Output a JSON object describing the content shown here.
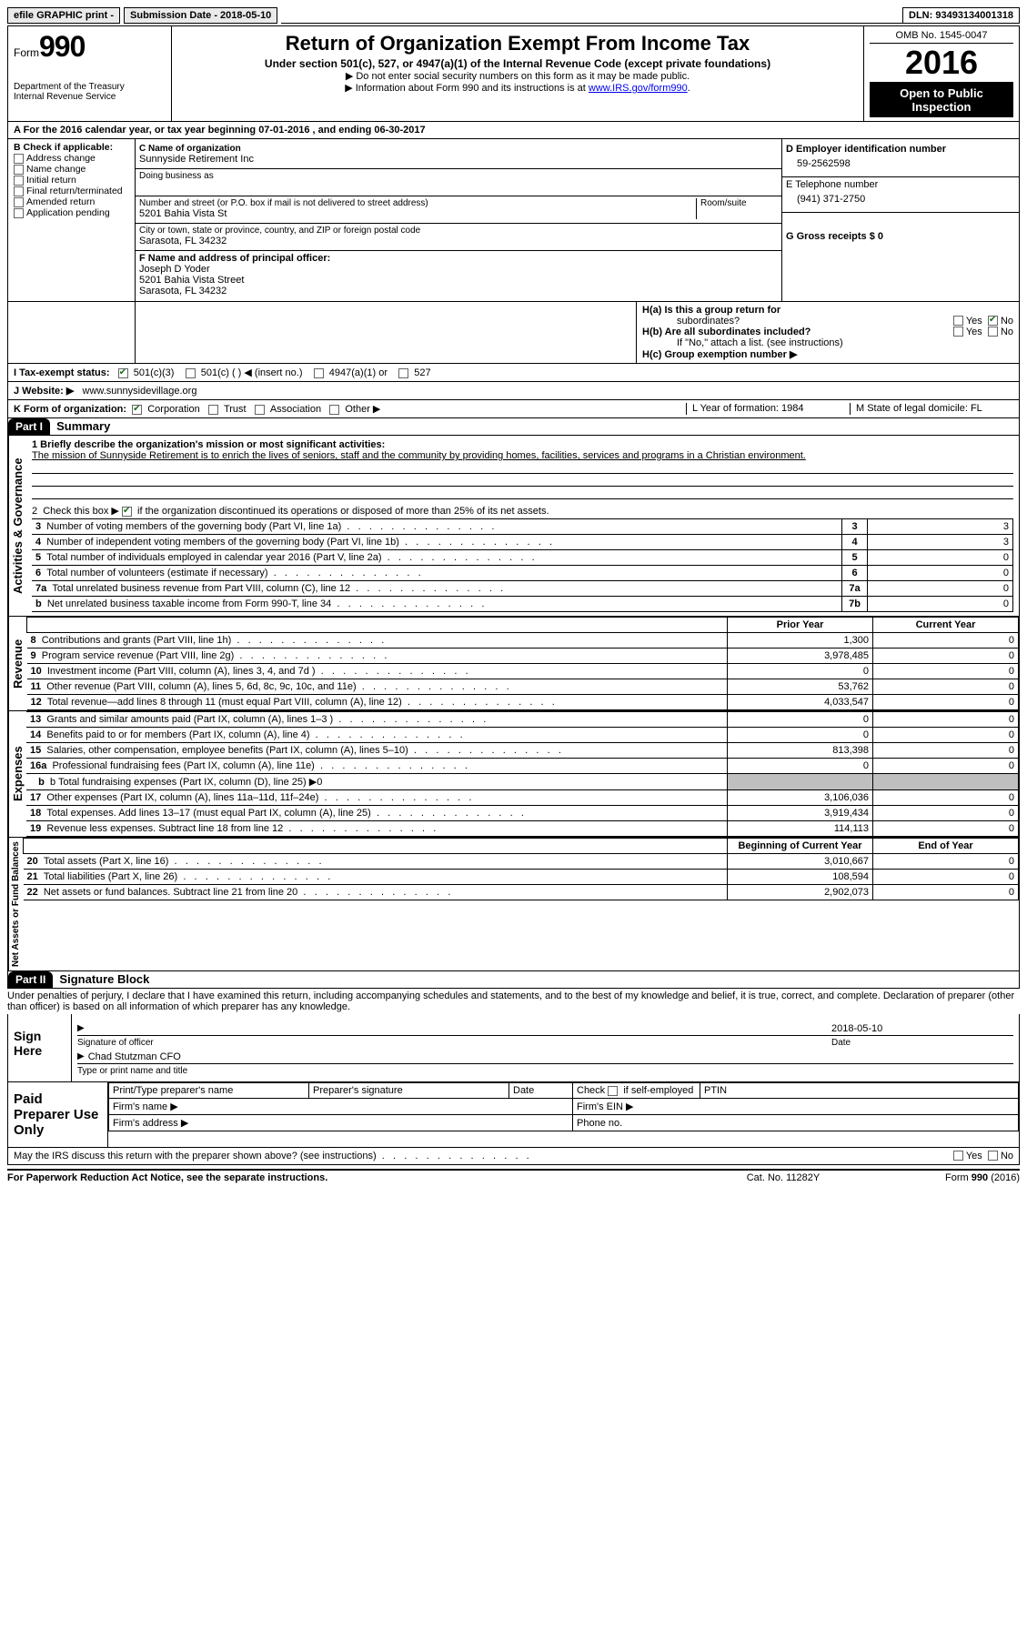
{
  "topbar": {
    "efile": "efile GRAPHIC print -",
    "submission": "Submission Date - 2018-05-10",
    "dln": "DLN: 93493134001318"
  },
  "header": {
    "form_word": "Form",
    "form_num": "990",
    "dept1": "Department of the Treasury",
    "dept2": "Internal Revenue Service",
    "title": "Return of Organization Exempt From Income Tax",
    "subtitle": "Under section 501(c), 527, or 4947(a)(1) of the Internal Revenue Code (except private foundations)",
    "note1": "▶ Do not enter social security numbers on this form as it may be made public.",
    "note2_pre": "▶ Information about Form 990 and its instructions is at ",
    "note2_link": "www.IRS.gov/form990",
    "omb": "OMB No. 1545-0047",
    "year": "2016",
    "open1": "Open to Public",
    "open2": "Inspection"
  },
  "rowA": "A   For the 2016 calendar year, or tax year beginning 07-01-2016   , and ending 06-30-2017",
  "colB": {
    "title": "B Check if applicable:",
    "items": [
      "Address change",
      "Name change",
      "Initial return",
      "Final return/terminated",
      "Amended return",
      "Application pending"
    ]
  },
  "colC": {
    "c_label": "C Name of organization",
    "org_name": "Sunnyside Retirement Inc",
    "dba": "Doing business as",
    "street_label": "Number and street (or P.O. box if mail is not delivered to street address)",
    "room_label": "Room/suite",
    "street": "5201 Bahia Vista St",
    "city_label": "City or town, state or province, country, and ZIP or foreign postal code",
    "city": "Sarasota, FL  34232",
    "f_label": "F  Name and address of principal officer:",
    "f_name": "Joseph D Yoder",
    "f_street": "5201 Bahia Vista Street",
    "f_city": "Sarasota, FL  34232"
  },
  "colD": {
    "d_label": "D Employer identification number",
    "ein": "59-2562598",
    "e_label": "E Telephone number",
    "phone": "(941) 371-2750",
    "g_label": "G Gross receipts $ 0"
  },
  "rowH": {
    "ha": "H(a)  Is this a group return for",
    "ha2": "subordinates?",
    "hb": "H(b)  Are all subordinates included?",
    "hb_note": "If \"No,\" attach a list. (see instructions)",
    "hc": "H(c)  Group exemption number ▶",
    "yes": "Yes",
    "no": "No"
  },
  "rowI": {
    "label": "I   Tax-exempt status:",
    "o1": "501(c)(3)",
    "o2": "501(c) (  ) ◀ (insert no.)",
    "o3": "4947(a)(1) or",
    "o4": "527"
  },
  "rowJ": {
    "label": "J   Website: ▶",
    "url": "www.sunnysidevillage.org"
  },
  "rowK": {
    "label": "K Form of organization:",
    "opts": [
      "Corporation",
      "Trust",
      "Association",
      "Other ▶"
    ],
    "l": "L Year of formation: 1984",
    "m": "M State of legal domicile: FL"
  },
  "part1": {
    "tag": "Part I",
    "title": "Summary",
    "line1_label": "1   Briefly describe the organization's mission or most significant activities:",
    "mission": "The mission of Sunnyside Retirement is to enrich the lives of seniors, staff and the community by providing homes, facilities, services and programs in a Christian environment.",
    "line2": "2   Check this box ▶        if the organization discontinued its operations or disposed of more than 25% of its net assets.",
    "gov_label": "Activities & Governance",
    "rev_label": "Revenue",
    "exp_label": "Expenses",
    "na_label": "Net Assets or Fund Balances",
    "rows_gov": [
      {
        "n": "3",
        "t": "Number of voting members of the governing body (Part VI, line 1a)",
        "k": "3",
        "v": "3"
      },
      {
        "n": "4",
        "t": "Number of independent voting members of the governing body (Part VI, line 1b)",
        "k": "4",
        "v": "3"
      },
      {
        "n": "5",
        "t": "Total number of individuals employed in calendar year 2016 (Part V, line 2a)",
        "k": "5",
        "v": "0"
      },
      {
        "n": "6",
        "t": "Total number of volunteers (estimate if necessary)",
        "k": "6",
        "v": "0"
      },
      {
        "n": "7a",
        "t": "Total unrelated business revenue from Part VIII, column (C), line 12",
        "k": "7a",
        "v": "0"
      },
      {
        "n": "b",
        "t": "Net unrelated business taxable income from Form 990-T, line 34",
        "k": "7b",
        "v": "0"
      }
    ],
    "col_prior": "Prior Year",
    "col_curr": "Current Year",
    "rows_rev": [
      {
        "n": "8",
        "t": "Contributions and grants (Part VIII, line 1h)",
        "p": "1,300",
        "c": "0"
      },
      {
        "n": "9",
        "t": "Program service revenue (Part VIII, line 2g)",
        "p": "3,978,485",
        "c": "0"
      },
      {
        "n": "10",
        "t": "Investment income (Part VIII, column (A), lines 3, 4, and 7d )",
        "p": "0",
        "c": "0"
      },
      {
        "n": "11",
        "t": "Other revenue (Part VIII, column (A), lines 5, 6d, 8c, 9c, 10c, and 11e)",
        "p": "53,762",
        "c": "0"
      },
      {
        "n": "12",
        "t": "Total revenue—add lines 8 through 11 (must equal Part VIII, column (A), line 12)",
        "p": "4,033,547",
        "c": "0"
      }
    ],
    "rows_exp": [
      {
        "n": "13",
        "t": "Grants and similar amounts paid (Part IX, column (A), lines 1–3 )",
        "p": "0",
        "c": "0"
      },
      {
        "n": "14",
        "t": "Benefits paid to or for members (Part IX, column (A), line 4)",
        "p": "0",
        "c": "0"
      },
      {
        "n": "15",
        "t": "Salaries, other compensation, employee benefits (Part IX, column (A), lines 5–10)",
        "p": "813,398",
        "c": "0"
      },
      {
        "n": "16a",
        "t": "Professional fundraising fees (Part IX, column (A), line 11e)",
        "p": "0",
        "c": "0"
      }
    ],
    "row16b": "b   Total fundraising expenses (Part IX, column (D), line 25) ▶0",
    "rows_exp2": [
      {
        "n": "17",
        "t": "Other expenses (Part IX, column (A), lines 11a–11d, 11f–24e)",
        "p": "3,106,036",
        "c": "0"
      },
      {
        "n": "18",
        "t": "Total expenses. Add lines 13–17 (must equal Part IX, column (A), line 25)",
        "p": "3,919,434",
        "c": "0"
      },
      {
        "n": "19",
        "t": "Revenue less expenses. Subtract line 18 from line 12",
        "p": "114,113",
        "c": "0"
      }
    ],
    "col_boy": "Beginning of Current Year",
    "col_eoy": "End of Year",
    "rows_na": [
      {
        "n": "20",
        "t": "Total assets (Part X, line 16)",
        "p": "3,010,667",
        "c": "0"
      },
      {
        "n": "21",
        "t": "Total liabilities (Part X, line 26)",
        "p": "108,594",
        "c": "0"
      },
      {
        "n": "22",
        "t": "Net assets or fund balances. Subtract line 21 from line 20",
        "p": "2,902,073",
        "c": "0"
      }
    ]
  },
  "part2": {
    "tag": "Part II",
    "title": "Signature Block",
    "penalty": "Under penalties of perjury, I declare that I have examined this return, including accompanying schedules and statements, and to the best of my knowledge and belief, it is true, correct, and complete. Declaration of preparer (other than officer) is based on all information of which preparer has any knowledge.",
    "sign_here": "Sign Here",
    "sig_officer": "Signature of officer",
    "sig_date": "Date",
    "sig_date_val": "2018-05-10",
    "officer_name": "Chad Stutzman CFO",
    "name_title_lbl": "Type or print name and title",
    "paid": "Paid Preparer Use Only",
    "p_name": "Print/Type preparer's name",
    "p_sig": "Preparer's signature",
    "p_date": "Date",
    "p_check": "Check        if self-employed",
    "p_ptin": "PTIN",
    "firm_name": "Firm's name    ▶",
    "firm_ein": "Firm's EIN ▶",
    "firm_addr": "Firm's address ▶",
    "phone": "Phone no.",
    "discuss": "May the IRS discuss this return with the preparer shown above? (see instructions)"
  },
  "footer": {
    "pra": "For Paperwork Reduction Act Notice, see the separate instructions.",
    "cat": "Cat. No. 11282Y",
    "form": "Form 990 (2016)"
  }
}
